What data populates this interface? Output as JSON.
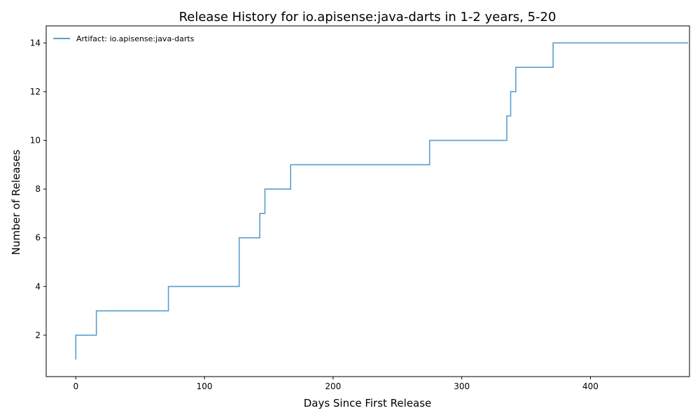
{
  "chart_data": {
    "type": "line",
    "title": "Release History for io.apisense:java-darts in 1-2 years, 5-20",
    "xlabel": "Days Since First Release",
    "ylabel": "Number of Releases",
    "xlim": [
      -23,
      477
    ],
    "ylim": [
      0.3,
      14.7
    ],
    "xticks": [
      0,
      100,
      200,
      300,
      400
    ],
    "yticks": [
      2,
      4,
      6,
      8,
      10,
      12,
      14
    ],
    "grid": false,
    "legend_position": "top-left",
    "series": [
      {
        "name": "Artifact: io.apisense:java-darts",
        "color": "#5b9fca",
        "step": "post",
        "x": [
          0,
          0,
          16,
          72,
          127,
          127,
          143,
          147,
          167,
          275,
          335,
          338,
          342,
          371,
          476
        ],
        "y": [
          1,
          2,
          3,
          4,
          5,
          6,
          7,
          8,
          9,
          10,
          11,
          12,
          13,
          14,
          14
        ]
      }
    ]
  }
}
